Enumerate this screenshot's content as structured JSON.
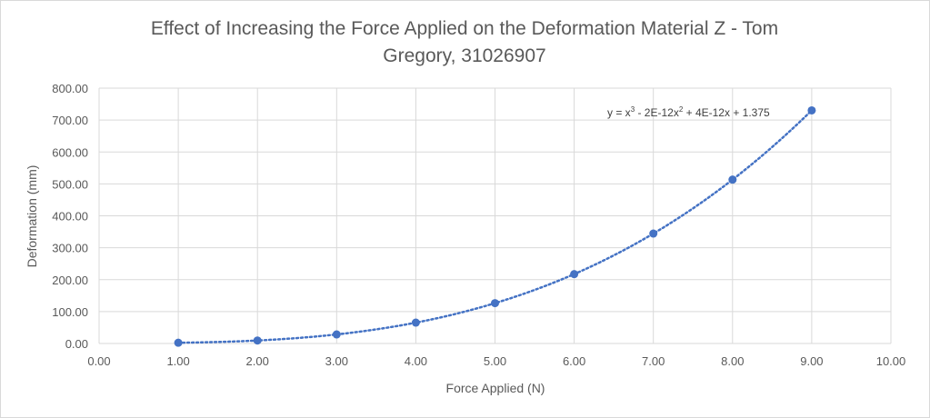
{
  "chart_data": {
    "type": "scatter",
    "title_lines": [
      "Effect of Increasing the Force Applied on the Deformation Material Z - Tom",
      "Gregory, 31026907"
    ],
    "xlabel": "Force Applied (N)",
    "ylabel": "Deformation (mm)",
    "xlim": [
      0,
      10
    ],
    "ylim": [
      0,
      800
    ],
    "x_ticks": [
      "0.00",
      "1.00",
      "2.00",
      "3.00",
      "4.00",
      "5.00",
      "6.00",
      "7.00",
      "8.00",
      "9.00",
      "10.00"
    ],
    "y_ticks": [
      "0.00",
      "100.00",
      "200.00",
      "300.00",
      "400.00",
      "500.00",
      "600.00",
      "700.00",
      "800.00"
    ],
    "grid": true,
    "legend": "none",
    "series": [
      {
        "x": [
          1,
          2,
          3,
          4,
          5,
          6,
          7,
          8,
          9
        ],
        "y": [
          2.375,
          9.375,
          28.375,
          65.375,
          126.375,
          217.375,
          344.375,
          513.375,
          730.375
        ],
        "color": "#4472c4"
      }
    ],
    "trendline": {
      "type": "polynomial",
      "coefficients": [
        1,
        -2e-12,
        4e-12,
        1.375
      ],
      "style": "dotted",
      "color": "#4472c4",
      "equation": {
        "prefix": "y = x",
        "sup1": "3",
        "mid": " - 2E-12x",
        "sup2": "2",
        "suffix": " + 4E-12x + 1.375"
      }
    }
  }
}
